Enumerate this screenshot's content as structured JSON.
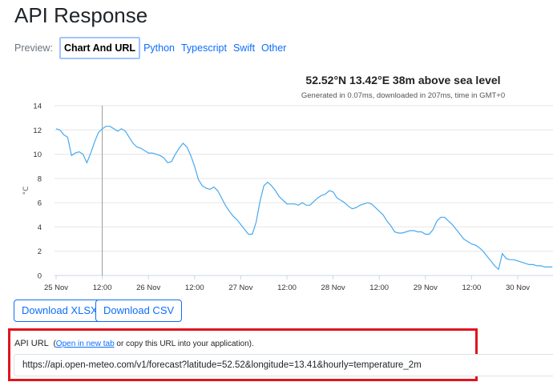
{
  "page": {
    "title": "API Response"
  },
  "tabs": {
    "preview_label": "Preview:",
    "items": [
      "Chart And URL",
      "Python",
      "Typescript",
      "Swift",
      "Other"
    ],
    "active": "Chart And URL"
  },
  "chart_data": {
    "type": "line",
    "title": "52.52°N 13.42°E 38m above sea level",
    "subtitle": "Generated in 0.07ms, downloaded in 207ms, time in GMT+0",
    "ylabel": "°C",
    "ylim": [
      0,
      14
    ],
    "yticks": [
      0,
      2,
      4,
      6,
      8,
      10,
      12,
      14
    ],
    "xticks": [
      "25 Nov",
      "12:00",
      "26 Nov",
      "12:00",
      "27 Nov",
      "12:00",
      "28 Nov",
      "12:00",
      "29 Nov",
      "12:00",
      "30 Nov"
    ],
    "xtick_hours": [
      0,
      12,
      24,
      36,
      48,
      60,
      72,
      84,
      96,
      108,
      120
    ],
    "crosshair_hour": 12,
    "line_color": "#47a9f0",
    "series": [
      {
        "x_hours": [
          0,
          1,
          2,
          3,
          4,
          5,
          6,
          7,
          8,
          9,
          10,
          11,
          12,
          13,
          14,
          15,
          16,
          17,
          18,
          19,
          20,
          21,
          22,
          23,
          24,
          25,
          26,
          27,
          28,
          29,
          30,
          31,
          32,
          33,
          34,
          35,
          36,
          37,
          38,
          39,
          40,
          41,
          42,
          43,
          44,
          45,
          46,
          47,
          48,
          49,
          50,
          51,
          52,
          53,
          54,
          55,
          56,
          57,
          58,
          59,
          60,
          61,
          62,
          63,
          64,
          65,
          66,
          67,
          68,
          69,
          70,
          71,
          72,
          73,
          74,
          75,
          76,
          77,
          78,
          79,
          80,
          81,
          82,
          83,
          84,
          85,
          86,
          87,
          88,
          89,
          90,
          91,
          92,
          93,
          94,
          95,
          96,
          97,
          98,
          99,
          100,
          101,
          102,
          103,
          104,
          105,
          106,
          107,
          108,
          109,
          110,
          111,
          112,
          113,
          114,
          115,
          116,
          117,
          118,
          119,
          120,
          121,
          122,
          123,
          124,
          125,
          126,
          127,
          128,
          129
        ],
        "values": [
          12.1,
          12.0,
          11.6,
          11.4,
          9.9,
          10.1,
          10.2,
          10.0,
          9.3,
          10.1,
          11.0,
          11.8,
          12.1,
          12.3,
          12.3,
          12.1,
          11.9,
          12.1,
          11.9,
          11.4,
          10.9,
          10.6,
          10.5,
          10.3,
          10.1,
          10.1,
          10.0,
          9.9,
          9.7,
          9.3,
          9.4,
          10.0,
          10.5,
          10.9,
          10.6,
          9.9,
          9.0,
          7.9,
          7.4,
          7.2,
          7.1,
          7.3,
          7.0,
          6.4,
          5.8,
          5.3,
          4.9,
          4.6,
          4.2,
          3.8,
          3.4,
          3.4,
          4.4,
          6.1,
          7.4,
          7.7,
          7.4,
          7.0,
          6.5,
          6.2,
          5.9,
          5.9,
          5.9,
          5.8,
          6.0,
          5.8,
          5.8,
          6.1,
          6.4,
          6.6,
          6.7,
          7.0,
          6.9,
          6.4,
          6.2,
          6.0,
          5.7,
          5.5,
          5.6,
          5.8,
          5.9,
          6.0,
          5.9,
          5.6,
          5.3,
          5.0,
          4.5,
          4.1,
          3.6,
          3.5,
          3.5,
          3.6,
          3.7,
          3.7,
          3.6,
          3.6,
          3.4,
          3.4,
          3.8,
          4.5,
          4.8,
          4.8,
          4.5,
          4.2,
          3.8,
          3.4,
          3.0,
          2.8,
          2.6,
          2.5,
          2.3,
          2.0,
          1.6,
          1.2,
          0.8,
          0.5,
          1.8,
          1.4,
          1.3,
          1.3,
          1.2,
          1.1,
          1.0,
          0.9,
          0.9,
          0.8,
          0.8,
          0.7,
          0.7,
          0.7
        ]
      }
    ]
  },
  "downloads": {
    "xlsx_label": "Download XLSX",
    "csv_label": "Download CSV"
  },
  "api": {
    "label": "API URL",
    "paren_open": "(",
    "open_link": "Open in new tab",
    "copy_text": " or copy this URL into your application).",
    "url": "https://api.open-meteo.com/v1/forecast?latitude=52.52&longitude=13.41&hourly=temperature_2m"
  }
}
